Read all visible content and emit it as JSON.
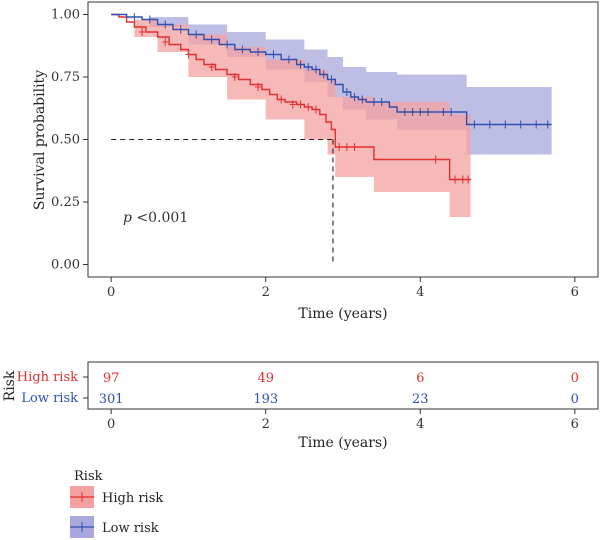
{
  "chart_data": [
    {
      "type": "line",
      "chart_kind": "kaplan-meier",
      "xlabel": "Time (years)",
      "ylabel": "Survival probability",
      "xlim": [
        -0.3,
        6.3
      ],
      "ylim": [
        -0.05,
        1.05
      ],
      "xticks": [
        0,
        2,
        4,
        6
      ],
      "yticks": [
        0.0,
        0.25,
        0.5,
        0.75,
        1.0
      ],
      "ytick_labels": [
        "0.00",
        "0.25",
        "0.50",
        "0.75",
        "1.00"
      ],
      "annotation_p": "p",
      "annotation_value": " <0.001",
      "median_survival": {
        "y": 0.5,
        "x": 2.87
      },
      "series": [
        {
          "name": "High risk",
          "color": "#e03030",
          "band_color": "#f4a0a0",
          "steps": [
            [
              0,
              1.0
            ],
            [
              0.1,
              0.99
            ],
            [
              0.2,
              0.97
            ],
            [
              0.3,
              0.95
            ],
            [
              0.45,
              0.93
            ],
            [
              0.6,
              0.91
            ],
            [
              0.75,
              0.88
            ],
            [
              0.9,
              0.86
            ],
            [
              1.0,
              0.84
            ],
            [
              1.1,
              0.82
            ],
            [
              1.2,
              0.8
            ],
            [
              1.35,
              0.78
            ],
            [
              1.5,
              0.76
            ],
            [
              1.65,
              0.74
            ],
            [
              1.8,
              0.72
            ],
            [
              1.95,
              0.7
            ],
            [
              2.05,
              0.68
            ],
            [
              2.15,
              0.66
            ],
            [
              2.25,
              0.65
            ],
            [
              2.4,
              0.64
            ],
            [
              2.5,
              0.63
            ],
            [
              2.6,
              0.62
            ],
            [
              2.7,
              0.6
            ],
            [
              2.78,
              0.57
            ],
            [
              2.85,
              0.54
            ],
            [
              2.9,
              0.47
            ],
            [
              3.3,
              0.47
            ],
            [
              3.4,
              0.42
            ],
            [
              4.3,
              0.42
            ],
            [
              4.38,
              0.34
            ],
            [
              4.65,
              0.34
            ]
          ],
          "band_upper": [
            [
              0,
              1.0
            ],
            [
              0.3,
              0.98
            ],
            [
              0.6,
              0.96
            ],
            [
              1.0,
              0.92
            ],
            [
              1.5,
              0.87
            ],
            [
              2.0,
              0.82
            ],
            [
              2.5,
              0.78
            ],
            [
              2.8,
              0.74
            ],
            [
              2.9,
              0.67
            ],
            [
              3.4,
              0.65
            ],
            [
              4.38,
              0.6
            ],
            [
              4.65,
              0.6
            ]
          ],
          "band_lower": [
            [
              0,
              1.0
            ],
            [
              0.3,
              0.91
            ],
            [
              0.6,
              0.85
            ],
            [
              1.0,
              0.75
            ],
            [
              1.5,
              0.66
            ],
            [
              2.0,
              0.58
            ],
            [
              2.5,
              0.5
            ],
            [
              2.8,
              0.44
            ],
            [
              2.9,
              0.35
            ],
            [
              3.4,
              0.29
            ],
            [
              4.38,
              0.19
            ],
            [
              4.65,
              0.19
            ]
          ],
          "censors": [
            [
              0.4,
              0.93
            ],
            [
              0.7,
              0.89
            ],
            [
              1.0,
              0.84
            ],
            [
              1.3,
              0.79
            ],
            [
              1.6,
              0.75
            ],
            [
              1.9,
              0.71
            ],
            [
              2.2,
              0.66
            ],
            [
              2.35,
              0.64
            ],
            [
              2.45,
              0.64
            ],
            [
              2.55,
              0.63
            ],
            [
              2.65,
              0.62
            ],
            [
              2.95,
              0.47
            ],
            [
              3.05,
              0.47
            ],
            [
              3.15,
              0.47
            ],
            [
              4.2,
              0.42
            ],
            [
              4.45,
              0.34
            ],
            [
              4.55,
              0.34
            ],
            [
              4.62,
              0.34
            ]
          ]
        },
        {
          "name": "Low risk",
          "color": "#3050b0",
          "band_color": "#a8a8dc",
          "steps": [
            [
              0,
              1.0
            ],
            [
              0.2,
              0.99
            ],
            [
              0.4,
              0.98
            ],
            [
              0.6,
              0.96
            ],
            [
              0.8,
              0.94
            ],
            [
              1.0,
              0.92
            ],
            [
              1.2,
              0.9
            ],
            [
              1.4,
              0.88
            ],
            [
              1.6,
              0.86
            ],
            [
              1.8,
              0.85
            ],
            [
              2.0,
              0.84
            ],
            [
              2.2,
              0.82
            ],
            [
              2.4,
              0.8
            ],
            [
              2.5,
              0.79
            ],
            [
              2.6,
              0.78
            ],
            [
              2.7,
              0.76
            ],
            [
              2.8,
              0.74
            ],
            [
              2.9,
              0.72
            ],
            [
              3.0,
              0.69
            ],
            [
              3.1,
              0.67
            ],
            [
              3.2,
              0.66
            ],
            [
              3.3,
              0.65
            ],
            [
              3.6,
              0.63
            ],
            [
              3.7,
              0.61
            ],
            [
              4.5,
              0.61
            ],
            [
              4.6,
              0.56
            ],
            [
              5.7,
              0.56
            ]
          ],
          "band_upper": [
            [
              0,
              1.0
            ],
            [
              0.5,
              0.99
            ],
            [
              1.0,
              0.96
            ],
            [
              1.5,
              0.93
            ],
            [
              2.0,
              0.9
            ],
            [
              2.5,
              0.86
            ],
            [
              2.8,
              0.83
            ],
            [
              3.0,
              0.79
            ],
            [
              3.3,
              0.77
            ],
            [
              3.7,
              0.76
            ],
            [
              4.6,
              0.71
            ],
            [
              5.7,
              0.71
            ]
          ],
          "band_lower": [
            [
              0,
              1.0
            ],
            [
              0.5,
              0.95
            ],
            [
              1.0,
              0.88
            ],
            [
              1.5,
              0.83
            ],
            [
              2.0,
              0.78
            ],
            [
              2.5,
              0.73
            ],
            [
              2.8,
              0.67
            ],
            [
              3.0,
              0.62
            ],
            [
              3.3,
              0.58
            ],
            [
              3.7,
              0.54
            ],
            [
              4.6,
              0.44
            ],
            [
              5.7,
              0.44
            ]
          ],
          "censors": [
            [
              0.3,
              0.99
            ],
            [
              0.5,
              0.98
            ],
            [
              0.7,
              0.96
            ],
            [
              0.9,
              0.94
            ],
            [
              1.1,
              0.92
            ],
            [
              1.3,
              0.9
            ],
            [
              1.5,
              0.88
            ],
            [
              1.7,
              0.86
            ],
            [
              1.9,
              0.85
            ],
            [
              2.1,
              0.84
            ],
            [
              2.3,
              0.82
            ],
            [
              2.45,
              0.8
            ],
            [
              2.55,
              0.79
            ],
            [
              2.65,
              0.78
            ],
            [
              2.75,
              0.76
            ],
            [
              2.85,
              0.74
            ],
            [
              3.05,
              0.69
            ],
            [
              3.15,
              0.67
            ],
            [
              3.25,
              0.66
            ],
            [
              3.4,
              0.65
            ],
            [
              3.5,
              0.65
            ],
            [
              3.8,
              0.61
            ],
            [
              3.9,
              0.61
            ],
            [
              4.0,
              0.61
            ],
            [
              4.1,
              0.61
            ],
            [
              4.3,
              0.61
            ],
            [
              4.4,
              0.61
            ],
            [
              4.7,
              0.56
            ],
            [
              4.9,
              0.56
            ],
            [
              5.1,
              0.56
            ],
            [
              5.3,
              0.56
            ],
            [
              5.5,
              0.56
            ],
            [
              5.65,
              0.56
            ]
          ]
        }
      ]
    },
    {
      "type": "table",
      "title": "Risk",
      "xlabel": "Time (years)",
      "xticks": [
        0,
        2,
        4,
        6
      ],
      "rows": [
        {
          "name": "High risk",
          "color": "#e03030",
          "values": [
            97,
            49,
            6,
            0
          ]
        },
        {
          "name": "Low risk",
          "color": "#3050b0",
          "values": [
            301,
            193,
            23,
            0
          ]
        }
      ]
    }
  ],
  "legend": {
    "title": "Risk",
    "items": [
      {
        "label": "High risk",
        "color": "#e03030",
        "fill": "#f4a0a0"
      },
      {
        "label": "Low risk",
        "color": "#3050b0",
        "fill": "#a8a8dc"
      }
    ]
  }
}
